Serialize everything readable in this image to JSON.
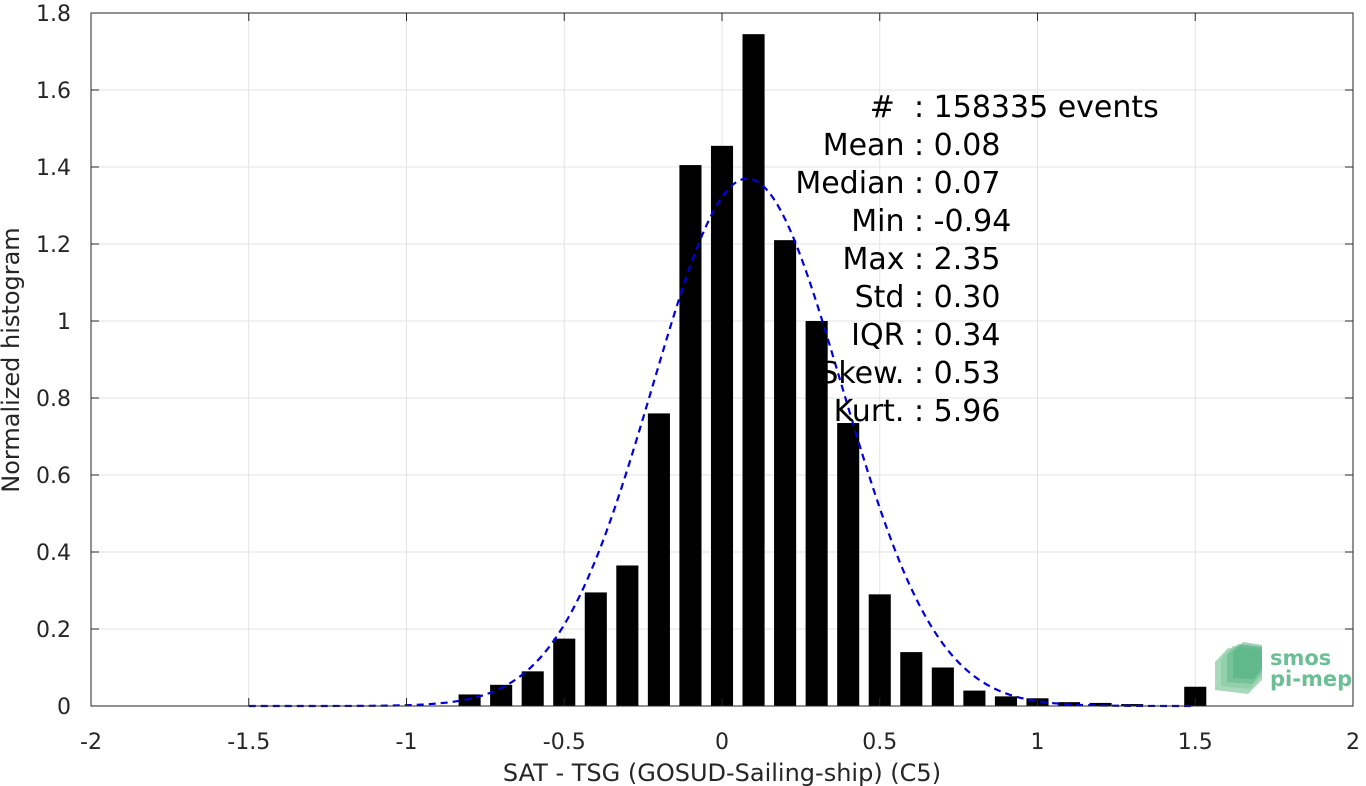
{
  "chart_data": {
    "type": "bar",
    "xlabel": "SAT - TSG (GOSUD-Sailing-ship) (C5)",
    "ylabel": "Normalized histogram",
    "xlim": [
      -2,
      2
    ],
    "ylim": [
      0,
      1.8
    ],
    "xticks": [
      "-2",
      "-1.5",
      "-1",
      "-0.5",
      "0",
      "0.5",
      "1",
      "1.5",
      "2"
    ],
    "yticks": [
      "0",
      "0.2",
      "0.4",
      "0.6",
      "0.8",
      "1",
      "1.2",
      "1.4",
      "1.6",
      "1.8"
    ],
    "grid": true,
    "bar_color": "#000000",
    "bar_width": 0.07,
    "bars": {
      "x": [
        -0.8,
        -0.7,
        -0.6,
        -0.5,
        -0.4,
        -0.3,
        -0.2,
        -0.1,
        0.0,
        0.1,
        0.2,
        0.3,
        0.4,
        0.5,
        0.6,
        0.7,
        0.8,
        0.9,
        1.0,
        1.1,
        1.2,
        1.3,
        1.5
      ],
      "values": [
        0.03,
        0.055,
        0.09,
        0.175,
        0.295,
        0.365,
        0.76,
        1.405,
        1.455,
        1.745,
        1.21,
        1.0,
        0.735,
        0.29,
        0.14,
        0.1,
        0.04,
        0.025,
        0.02,
        0.01,
        0.008,
        0.005,
        0.05
      ]
    },
    "fit": {
      "type": "line",
      "style": "dashed",
      "color": "#0000dd",
      "mean": 0.08,
      "std": 0.3,
      "peak": 1.37,
      "x_range": [
        -1.5,
        1.5
      ]
    },
    "annotations": [
      {
        "label": "#  ",
        "sep": ": ",
        "value": "158335 events"
      },
      {
        "label": "Mean ",
        "sep": ": ",
        "value": "0.08"
      },
      {
        "label": "Median ",
        "sep": ": ",
        "value": "0.07"
      },
      {
        "label": "Min ",
        "sep": ": ",
        "value": "-0.94"
      },
      {
        "label": "Max ",
        "sep": ": ",
        "value": "2.35"
      },
      {
        "label": "Std ",
        "sep": ": ",
        "value": "0.30"
      },
      {
        "label": "IQR ",
        "sep": ": ",
        "value": "0.34"
      },
      {
        "label": "Skew. ",
        "sep": ": ",
        "value": "0.53"
      },
      {
        "label": "Kurt. ",
        "sep": ": ",
        "value": "5.96"
      }
    ]
  },
  "logo": {
    "line1": "smos",
    "line2": "pi-mep",
    "color": "#6cbf94"
  }
}
